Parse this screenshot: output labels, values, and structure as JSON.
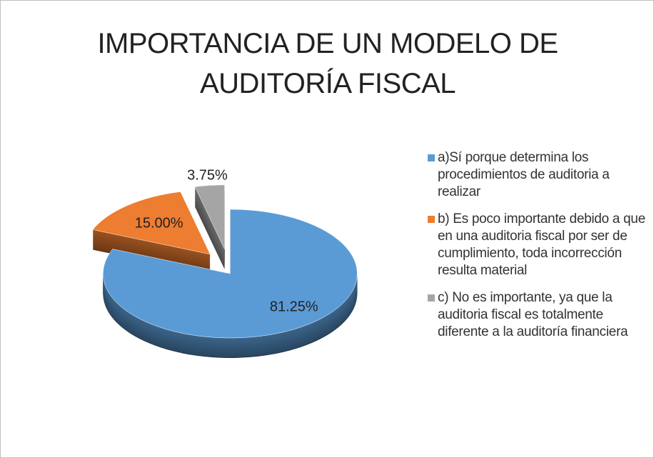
{
  "chart_data": {
    "type": "pie",
    "title": "IMPORTANCIA DE UN MODELO DE AUDITORÍA FISCAL",
    "categories": [
      "a)Sí porque determina los procedimientos de auditoria a realizar",
      "b) Es poco importante debido a que en una auditoria fiscal por ser de cumplimiento, toda incorrección resulta material",
      "c) No es importante, ya que la auditoria fiscal es totalmente diferente a la auditoría financiera"
    ],
    "values": [
      81.25,
      15.0,
      3.75
    ],
    "value_labels": [
      "81.25%",
      "15.00%",
      "3.75%"
    ],
    "colors": [
      "#5b9bd5",
      "#ed7d31",
      "#a5a5a5"
    ],
    "legend": "right"
  }
}
